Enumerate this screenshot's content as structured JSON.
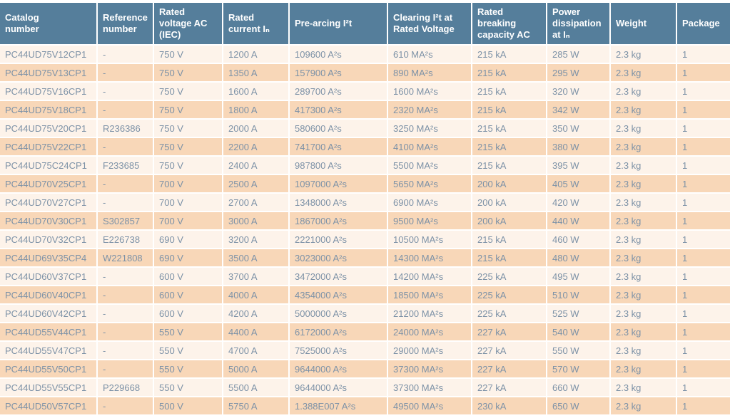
{
  "colors": {
    "header-bg": "#557e9b",
    "header-text": "#ffffff",
    "row-odd-bg": "#fdf3ea",
    "row-even-bg": "#f8d7b8",
    "cell-text": "#7d92a7",
    "separator": "#ffffff"
  },
  "table": {
    "columns": [
      {
        "id": "catalog-number",
        "label": "Catalog\nnumber"
      },
      {
        "id": "reference-number",
        "label": "Reference\nnumber"
      },
      {
        "id": "rated-voltage",
        "label": "Rated\nvoltage AC\n(IEC)"
      },
      {
        "id": "rated-current",
        "label": "Rated\ncurrent Iₙ"
      },
      {
        "id": "prearcing-i2t",
        "label": "Pre-arcing I²t"
      },
      {
        "id": "clearing-i2t",
        "label": "Clearing I²t at\nRated Voltage"
      },
      {
        "id": "breaking-capacity",
        "label": "Rated\nbreaking\ncapacity AC"
      },
      {
        "id": "power-dissipation",
        "label": "Power\ndissipation\nat Iₙ"
      },
      {
        "id": "weight",
        "label": "Weight"
      },
      {
        "id": "package",
        "label": "Package"
      }
    ],
    "rows": [
      [
        "PC44UD75V12CP1",
        "-",
        "750 V",
        "1200 A",
        "109600 A²s",
        "610 MA²s",
        "215 kA",
        "285 W",
        "2.3 kg",
        "1"
      ],
      [
        "PC44UD75V13CP1",
        "-",
        "750 V",
        "1350 A",
        "157900 A²s",
        "890 MA²s",
        "215 kA",
        "295 W",
        "2.3 kg",
        "1"
      ],
      [
        "PC44UD75V16CP1",
        "-",
        "750 V",
        "1600 A",
        "289700 A²s",
        "1600 MA²s",
        "215 kA",
        "320 W",
        "2.3 kg",
        "1"
      ],
      [
        "PC44UD75V18CP1",
        "-",
        "750 V",
        "1800 A",
        "417300 A²s",
        "2320 MA²s",
        "215 kA",
        "342 W",
        "2.3 kg",
        "1"
      ],
      [
        "PC44UD75V20CP1",
        "R236386",
        "750 V",
        "2000 A",
        "580600 A²s",
        "3250 MA²s",
        "215 kA",
        "350 W",
        "2.3 kg",
        "1"
      ],
      [
        "PC44UD75V22CP1",
        "-",
        "750 V",
        "2200 A",
        "741700 A²s",
        "4100 MA²s",
        "215 kA",
        "380 W",
        "2.3 kg",
        "1"
      ],
      [
        "PC44UD75C24CP1",
        "F233685",
        "750 V",
        "2400 A",
        "987800 A²s",
        "5500 MA²s",
        "215 kA",
        "395 W",
        "2.3 kg",
        "1"
      ],
      [
        "PC44UD70V25CP1",
        "-",
        "700 V",
        "2500 A",
        "1097000 A²s",
        "5650 MA²s",
        "200 kA",
        "405 W",
        "2.3 kg",
        "1"
      ],
      [
        "PC44UD70V27CP1",
        "-",
        "700 V",
        "2700 A",
        "1348000 A²s",
        "6900 MA²s",
        "200 kA",
        "420 W",
        "2.3 kg",
        "1"
      ],
      [
        "PC44UD70V30CP1",
        "S302857",
        "700 V",
        "3000 A",
        "1867000 A²s",
        "9500 MA²s",
        "200 kA",
        "440 W",
        "2.3 kg",
        "1"
      ],
      [
        "PC44UD70V32CP1",
        "E226738",
        "690 V",
        "3200 A",
        "2221000 A²s",
        "10500 MA²s",
        "215 kA",
        "460 W",
        "2.3 kg",
        "1"
      ],
      [
        "PC44UD69V35CP4",
        "W221808",
        "690 V",
        "3500 A",
        "3023000 A²s",
        "14300 MA²s",
        "215 kA",
        "480 W",
        "2.3 kg",
        "1"
      ],
      [
        "PC44UD60V37CP1",
        "-",
        "600 V",
        "3700 A",
        "3472000 A²s",
        "14200 MA²s",
        "225 kA",
        "495 W",
        "2.3 kg",
        "1"
      ],
      [
        "PC44UD60V40CP1",
        "-",
        "600 V",
        "4000 A",
        "4354000 A²s",
        "18500 MA²s",
        "225 kA",
        "510 W",
        "2.3 kg",
        "1"
      ],
      [
        "PC44UD60V42CP1",
        "-",
        "600 V",
        "4200 A",
        "5000000 A²s",
        "21200 MA²s",
        "225 kA",
        "525 W",
        "2.3 kg",
        "1"
      ],
      [
        "PC44UD55V44CP1",
        "-",
        "550 V",
        "4400 A",
        "6172000 A²s",
        "24000 MA²s",
        "227 kA",
        "540 W",
        "2.3 kg",
        "1"
      ],
      [
        "PC44UD55V47CP1",
        "-",
        "550 V",
        "4700 A",
        "7525000 A²s",
        "29000 MA²s",
        "227 kA",
        "550 W",
        "2.3 kg",
        "1"
      ],
      [
        "PC44UD55V50CP1",
        "-",
        "550 V",
        "5000 A",
        "9644000 A²s",
        "37300 MA²s",
        "227 kA",
        "570 W",
        "2.3 kg",
        "1"
      ],
      [
        "PC44UD55V55CP1",
        "P229668",
        "550 V",
        "5500 A",
        "9644000 A²s",
        "37300 MA²s",
        "227 kA",
        "660 W",
        "2.3 kg",
        "1"
      ],
      [
        "PC44UD50V57CP1",
        "-",
        "500 V",
        "5750 A",
        "1.388E007 A²s",
        "49500 MA²s",
        "230 kA",
        "650 W",
        "2.3 kg",
        "1"
      ]
    ]
  }
}
